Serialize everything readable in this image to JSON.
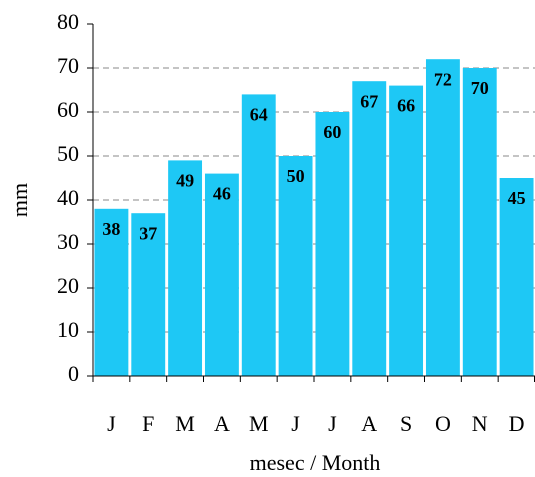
{
  "chart_data": {
    "type": "bar",
    "x_label": "mesec / Month",
    "y_label": "mm",
    "categories": [
      "J",
      "F",
      "M",
      "A",
      "M",
      "J",
      "J",
      "A",
      "S",
      "O",
      "N",
      "D"
    ],
    "values": [
      38,
      37,
      49,
      46,
      64,
      50,
      60,
      67,
      66,
      72,
      70,
      45
    ],
    "color": "#1ec8f5",
    "ylim": [
      0,
      80
    ],
    "yticks": [
      0,
      10,
      20,
      30,
      40,
      50,
      60,
      70,
      80
    ],
    "grid": true
  }
}
